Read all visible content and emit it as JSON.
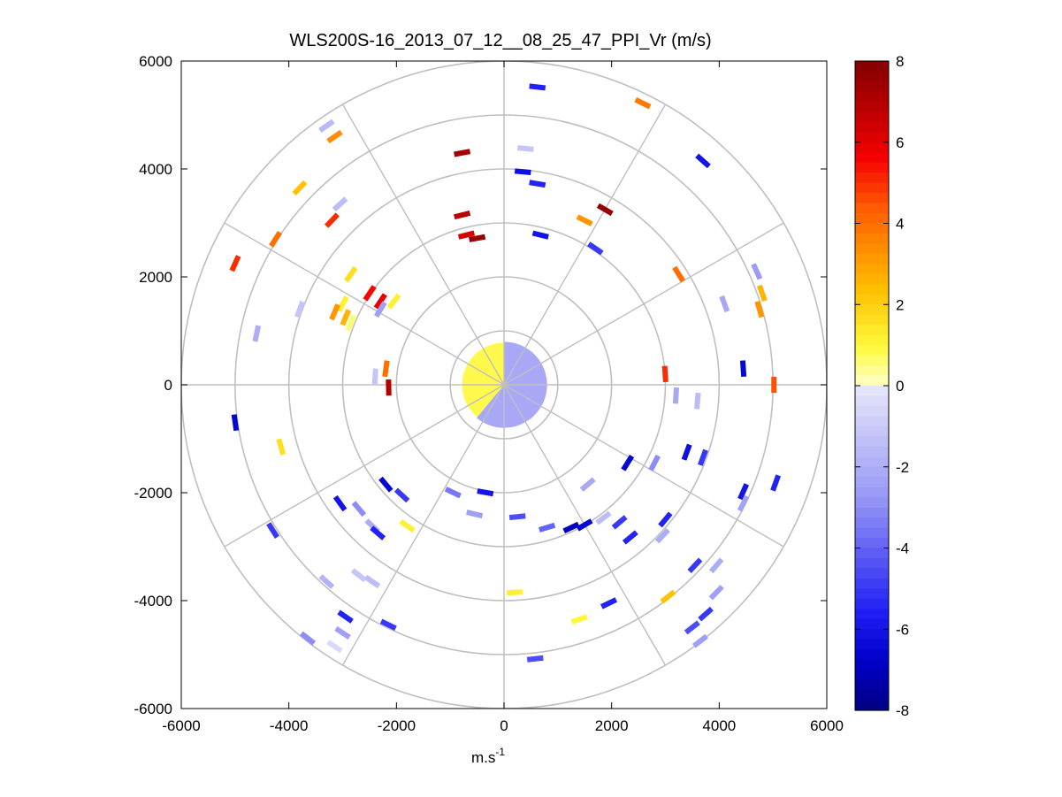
{
  "chart_data": {
    "type": "scatter",
    "subtype": "polar-ppi-velocity-map",
    "title": "WLS200S-16_2013_07_12__08_25_47_PPI_Vr (m/s)",
    "xlabel": "m.s",
    "xlabel_superscript": "-1",
    "ylabel": "",
    "xlim": [
      -6000,
      6000
    ],
    "ylim": [
      -6000,
      6000
    ],
    "xticks": [
      "-6000",
      "-4000",
      "-2000",
      "0",
      "2000",
      "4000",
      "6000"
    ],
    "yticks": [
      "6000",
      "4000",
      "2000",
      "0",
      "-2000",
      "-4000",
      "-6000"
    ],
    "grid": true,
    "range_rings": [
      1000,
      2000,
      3000,
      4000,
      5000,
      6000
    ],
    "spoke_angles_deg": [
      0,
      30,
      60,
      90,
      120,
      150,
      180,
      210,
      240,
      270,
      300,
      330
    ],
    "colorbar": {
      "min": -8,
      "max": 8,
      "ticks": [
        "8",
        "6",
        "4",
        "2",
        "0",
        "-2",
        "-4",
        "-6",
        "-8"
      ],
      "colormap": "blue-white-yellow-red"
    },
    "near_field": {
      "radius_m": 1000,
      "description_velocity": {
        "north_west_half": 1.0,
        "south_east_half": -2.5
      }
    },
    "points": [
      {
        "x": 620,
        "y": 5520,
        "v": -5.5
      },
      {
        "x": 2580,
        "y": 5220,
        "v": 3.8
      },
      {
        "x": -3300,
        "y": 4800,
        "v": -1.6
      },
      {
        "x": -3150,
        "y": 4600,
        "v": 3.4
      },
      {
        "x": 3700,
        "y": 4150,
        "v": -6.0
      },
      {
        "x": -780,
        "y": 4300,
        "v": 7.3
      },
      {
        "x": 400,
        "y": 4380,
        "v": -1.2
      },
      {
        "x": -3800,
        "y": 3650,
        "v": 2.3
      },
      {
        "x": -3050,
        "y": 3350,
        "v": -1.5
      },
      {
        "x": -3200,
        "y": 3050,
        "v": 5.0
      },
      {
        "x": 350,
        "y": 3950,
        "v": -6.2
      },
      {
        "x": 620,
        "y": 3730,
        "v": -5.5
      },
      {
        "x": -780,
        "y": 3150,
        "v": 6.8
      },
      {
        "x": 1500,
        "y": 3050,
        "v": 3.2
      },
      {
        "x": 1880,
        "y": 3250,
        "v": 7.6
      },
      {
        "x": -700,
        "y": 2780,
        "v": 6.2
      },
      {
        "x": -500,
        "y": 2720,
        "v": 7.5
      },
      {
        "x": 680,
        "y": 2780,
        "v": -6.0
      },
      {
        "x": 1700,
        "y": 2530,
        "v": -5.0
      },
      {
        "x": -4250,
        "y": 2700,
        "v": 4.0
      },
      {
        "x": -5000,
        "y": 2250,
        "v": 5.0
      },
      {
        "x": -2850,
        "y": 2050,
        "v": 1.6
      },
      {
        "x": -2500,
        "y": 1700,
        "v": 5.5
      },
      {
        "x": -2300,
        "y": 1550,
        "v": 5.8
      },
      {
        "x": -2050,
        "y": 1550,
        "v": 1.2
      },
      {
        "x": -3000,
        "y": 1500,
        "v": 1.2
      },
      {
        "x": -2950,
        "y": 1250,
        "v": 2.6
      },
      {
        "x": -3150,
        "y": 1350,
        "v": 3.2
      },
      {
        "x": -2850,
        "y": 1150,
        "v": 0.6
      },
      {
        "x": -2300,
        "y": 1400,
        "v": -2.5
      },
      {
        "x": -3800,
        "y": 1400,
        "v": -1.2
      },
      {
        "x": -4600,
        "y": 950,
        "v": -2.0
      },
      {
        "x": 3250,
        "y": 2050,
        "v": 4.0
      },
      {
        "x": 4700,
        "y": 2100,
        "v": -2.6
      },
      {
        "x": 4800,
        "y": 1700,
        "v": 2.6
      },
      {
        "x": 4750,
        "y": 1400,
        "v": 3.2
      },
      {
        "x": 4100,
        "y": 1500,
        "v": -2.2
      },
      {
        "x": 4450,
        "y": 300,
        "v": -6.5
      },
      {
        "x": 5020,
        "y": 0,
        "v": 4.5
      },
      {
        "x": 3000,
        "y": 200,
        "v": 5.0
      },
      {
        "x": 3200,
        "y": -200,
        "v": -2.2
      },
      {
        "x": 3600,
        "y": -300,
        "v": -1.5
      },
      {
        "x": -2200,
        "y": 300,
        "v": 4.0
      },
      {
        "x": -2400,
        "y": 150,
        "v": -1.2
      },
      {
        "x": -2150,
        "y": -50,
        "v": 7.0
      },
      {
        "x": -5000,
        "y": -700,
        "v": -6.5
      },
      {
        "x": -4150,
        "y": -1150,
        "v": 1.6
      },
      {
        "x": 3400,
        "y": -1250,
        "v": -6.2
      },
      {
        "x": 3700,
        "y": -1350,
        "v": -5.0
      },
      {
        "x": 2800,
        "y": -1450,
        "v": -3.0
      },
      {
        "x": 2300,
        "y": -1450,
        "v": -6.5
      },
      {
        "x": 4450,
        "y": -1980,
        "v": -6.0
      },
      {
        "x": 5050,
        "y": -1820,
        "v": -5.5
      },
      {
        "x": 4450,
        "y": -2200,
        "v": -2.4
      },
      {
        "x": -2200,
        "y": -1850,
        "v": -6.5
      },
      {
        "x": -1900,
        "y": -2050,
        "v": -5.0
      },
      {
        "x": -3050,
        "y": -2200,
        "v": -6.0
      },
      {
        "x": -2700,
        "y": -2300,
        "v": -3.0
      },
      {
        "x": -2450,
        "y": -2620,
        "v": -2.0
      },
      {
        "x": -2350,
        "y": -2750,
        "v": -5.5
      },
      {
        "x": -1800,
        "y": -2620,
        "v": 1.2
      },
      {
        "x": -4300,
        "y": -2700,
        "v": -5.0
      },
      {
        "x": 1560,
        "y": -1850,
        "v": -2.2
      },
      {
        "x": 1250,
        "y": -2650,
        "v": -7.0
      },
      {
        "x": 2150,
        "y": -2550,
        "v": -5.0
      },
      {
        "x": 1850,
        "y": -2470,
        "v": -1.5
      },
      {
        "x": 2950,
        "y": -2800,
        "v": -2.0
      },
      {
        "x": 3000,
        "y": -2500,
        "v": -5.5
      },
      {
        "x": 2350,
        "y": -2830,
        "v": -5.5
      },
      {
        "x": 3550,
        "y": -3350,
        "v": -5.0
      },
      {
        "x": 3950,
        "y": -3350,
        "v": -2.0
      },
      {
        "x": 3950,
        "y": -3850,
        "v": -2.5
      },
      {
        "x": 3750,
        "y": -4250,
        "v": -5.0
      },
      {
        "x": 3500,
        "y": -4500,
        "v": -4.5
      },
      {
        "x": 3650,
        "y": -4750,
        "v": -2.5
      },
      {
        "x": 3050,
        "y": -3930,
        "v": 2.3
      },
      {
        "x": -3300,
        "y": -3650,
        "v": -1.8
      },
      {
        "x": -2450,
        "y": -3650,
        "v": -1.5
      },
      {
        "x": -2700,
        "y": -3530,
        "v": -1.2
      },
      {
        "x": -2950,
        "y": -4300,
        "v": -5.5
      },
      {
        "x": -2150,
        "y": -4450,
        "v": -5.0
      },
      {
        "x": -3000,
        "y": -4600,
        "v": -2.5
      },
      {
        "x": -3150,
        "y": -4850,
        "v": -0.5
      },
      {
        "x": -3650,
        "y": -4700,
        "v": -3.0
      },
      {
        "x": 200,
        "y": -3850,
        "v": 1.2
      },
      {
        "x": 1400,
        "y": -4350,
        "v": 1.0
      },
      {
        "x": 1950,
        "y": -4050,
        "v": -5.5
      },
      {
        "x": 580,
        "y": -5080,
        "v": -4.5
      },
      {
        "x": -950,
        "y": -2000,
        "v": -3.5
      },
      {
        "x": -550,
        "y": -2400,
        "v": -2.5
      },
      {
        "x": 250,
        "y": -2450,
        "v": -4.5
      },
      {
        "x": -350,
        "y": -2000,
        "v": -6.0
      },
      {
        "x": 800,
        "y": -2650,
        "v": -4.0
      },
      {
        "x": 1500,
        "y": -2600,
        "v": -6.5
      }
    ]
  }
}
